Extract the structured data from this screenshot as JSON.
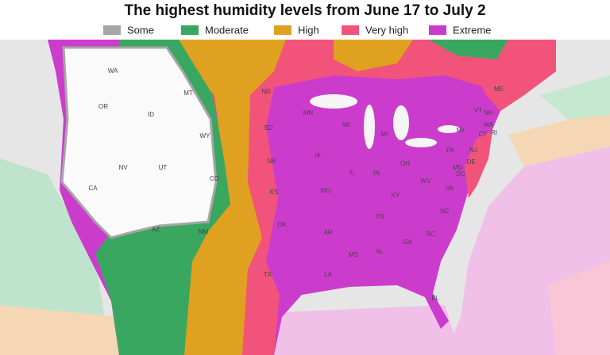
{
  "title": "The highest humidity levels from June 17 to July 2",
  "legend": [
    {
      "label": "Some",
      "color": "#a6a6a6"
    },
    {
      "label": "Moderate",
      "color": "#3aa760"
    },
    {
      "label": "High",
      "color": "#e0a020"
    },
    {
      "label": "Very high",
      "color": "#f2537a"
    },
    {
      "label": "Extreme",
      "color": "#cc3ccc"
    }
  ],
  "states": [
    "WA",
    "OR",
    "ID",
    "MT",
    "WY",
    "NV",
    "UT",
    "CA",
    "CO",
    "AZ",
    "NM",
    "ND",
    "SD",
    "NE",
    "KS",
    "OK",
    "TX",
    "MN",
    "IA",
    "MO",
    "AR",
    "LA",
    "WI",
    "IL",
    "MI",
    "IN",
    "OH",
    "KY",
    "TN",
    "MS",
    "AL",
    "GA",
    "SC",
    "NC",
    "VA",
    "WV",
    "PA",
    "NY",
    "ME",
    "VT",
    "NH",
    "MA",
    "CT",
    "RI",
    "NJ",
    "DE",
    "MD",
    "DC",
    "FL"
  ]
}
